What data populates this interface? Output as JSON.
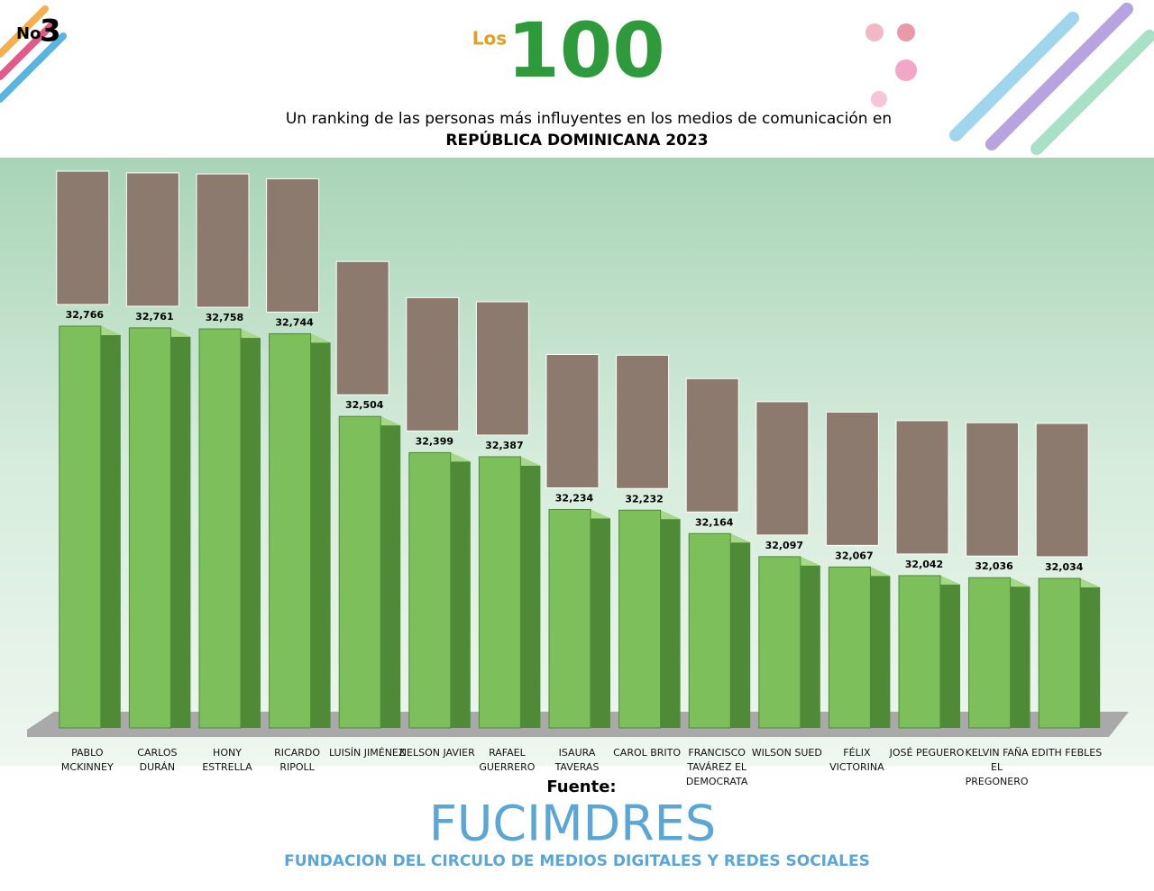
{
  "chart_data": {
    "type": "bar",
    "badge_prefix": "No",
    "badge_number": "3",
    "logo_prefix": "Los",
    "logo_number": "100",
    "title_line1": "Un ranking de las personas más influyentes en los medios de comunicación en",
    "title_line2": "REPÚBLICA DOMINICANA 2023",
    "categories": [
      "PABLO MCKINNEY",
      "CARLOS DURÁN",
      "HONY ESTRELLA",
      "RICARDO RIPOLL",
      "LUISÍN JIMÉNEZ",
      "NELSON JAVIER",
      "RAFAEL GUERRERO",
      "ISAURA TAVERAS",
      "CAROL BRITO",
      "FRANCISCO TAVÁREZ EL DEMOCRATA",
      "WILSON SUED",
      "FÉLIX VICTORINA",
      "JOSÉ PEGUERO",
      "KELVIN FAÑA EL PREGONERO",
      "EDITH FEBLES"
    ],
    "values": [
      32766,
      32761,
      32758,
      32744,
      32504,
      32399,
      32387,
      32234,
      32232,
      32164,
      32097,
      32067,
      32042,
      32036,
      32034
    ],
    "value_labels": [
      "32,766",
      "32,761",
      "32,758",
      "32,744",
      "32,504",
      "32,399",
      "32,387",
      "32,234",
      "32,232",
      "32,164",
      "32,097",
      "32,067",
      "32,042",
      "32,036",
      "32,034"
    ],
    "color": "#7dbf5b",
    "ylim": [
      31600,
      32800
    ],
    "source_label": "Fuente:",
    "source_name": "FUCIMDRES",
    "source_full": "FUNDACION DEL CIRCULO DE MEDIOS DIGITALES Y REDES SOCIALES"
  }
}
